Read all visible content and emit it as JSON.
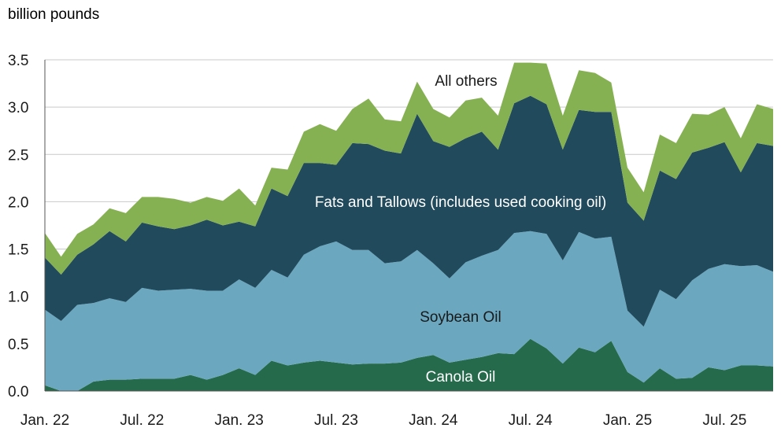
{
  "chart_data": {
    "type": "area",
    "stacked": true,
    "ylabel": "billion pounds",
    "ylim": [
      0,
      3.5
    ],
    "yticks": [
      "0.0",
      "0.5",
      "1.0",
      "1.5",
      "2.0",
      "2.5",
      "3.0",
      "3.5"
    ],
    "grid": true,
    "x": [
      "2022-01",
      "2022-02",
      "2022-03",
      "2022-04",
      "2022-05",
      "2022-06",
      "2022-07",
      "2022-08",
      "2022-09",
      "2022-10",
      "2022-11",
      "2022-12",
      "2023-01",
      "2023-02",
      "2023-03",
      "2023-04",
      "2023-05",
      "2023-06",
      "2023-07",
      "2023-08",
      "2023-09",
      "2023-10",
      "2023-11",
      "2023-12",
      "2024-01",
      "2024-02",
      "2024-03",
      "2024-04",
      "2024-05",
      "2024-06",
      "2024-07",
      "2024-08",
      "2024-09",
      "2024-10",
      "2024-11",
      "2024-12",
      "2025-01",
      "2025-02",
      "2025-03",
      "2025-04",
      "2025-05",
      "2025-06",
      "2025-07",
      "2025-08",
      "2025-09",
      "2025-10"
    ],
    "xtick_labels": [
      {
        "x": "2022-01",
        "label": "Jan. 22"
      },
      {
        "x": "2022-07",
        "label": "Jul. 22"
      },
      {
        "x": "2023-01",
        "label": "Jan. 23"
      },
      {
        "x": "2023-07",
        "label": "Jul. 23"
      },
      {
        "x": "2024-01",
        "label": "Jan. 24"
      },
      {
        "x": "2024-07",
        "label": "Jul. 24"
      },
      {
        "x": "2025-01",
        "label": "Jan. 25"
      },
      {
        "x": "2025-07",
        "label": "Jul. 25"
      }
    ],
    "series": [
      {
        "name": "Canola Oil",
        "color": "#256b4b",
        "values": [
          0.06,
          0.0,
          0.0,
          0.1,
          0.12,
          0.12,
          0.13,
          0.13,
          0.13,
          0.17,
          0.12,
          0.17,
          0.24,
          0.17,
          0.32,
          0.27,
          0.3,
          0.32,
          0.3,
          0.28,
          0.29,
          0.29,
          0.3,
          0.35,
          0.38,
          0.3,
          0.33,
          0.36,
          0.4,
          0.39,
          0.55,
          0.45,
          0.29,
          0.46,
          0.41,
          0.53,
          0.2,
          0.09,
          0.24,
          0.13,
          0.14,
          0.25,
          0.22,
          0.27,
          0.27,
          0.26
        ]
      },
      {
        "name": "Soybean Oil",
        "color": "#6ba8c0",
        "values": [
          0.8,
          0.74,
          0.91,
          0.83,
          0.86,
          0.82,
          0.96,
          0.93,
          0.94,
          0.91,
          0.94,
          0.89,
          0.94,
          0.92,
          0.96,
          0.93,
          1.14,
          1.21,
          1.28,
          1.21,
          1.2,
          1.06,
          1.07,
          1.14,
          0.97,
          0.89,
          1.03,
          1.07,
          1.09,
          1.28,
          1.14,
          1.21,
          1.09,
          1.22,
          1.2,
          1.1,
          0.65,
          0.59,
          0.83,
          0.84,
          1.03,
          1.04,
          1.12,
          1.05,
          1.06,
          1.0
        ]
      },
      {
        "name": "Fats and Tallows (includes used cooking oil)",
        "color": "#214a5d",
        "values": [
          0.55,
          0.49,
          0.53,
          0.62,
          0.71,
          0.64,
          0.69,
          0.68,
          0.64,
          0.67,
          0.75,
          0.69,
          0.61,
          0.65,
          0.86,
          0.86,
          0.97,
          0.88,
          0.81,
          1.13,
          1.12,
          1.19,
          1.14,
          1.44,
          1.29,
          1.39,
          1.31,
          1.31,
          1.06,
          1.37,
          1.43,
          1.37,
          1.17,
          1.29,
          1.34,
          1.32,
          1.14,
          1.12,
          1.26,
          1.27,
          1.35,
          1.28,
          1.29,
          0.99,
          1.29,
          1.33
        ]
      },
      {
        "name": "All others",
        "color": "#86b152",
        "values": [
          0.26,
          0.19,
          0.22,
          0.21,
          0.24,
          0.3,
          0.27,
          0.31,
          0.32,
          0.24,
          0.24,
          0.26,
          0.35,
          0.22,
          0.22,
          0.28,
          0.33,
          0.41,
          0.36,
          0.36,
          0.48,
          0.33,
          0.34,
          0.34,
          0.34,
          0.31,
          0.4,
          0.36,
          0.36,
          0.43,
          0.35,
          0.43,
          0.36,
          0.42,
          0.41,
          0.31,
          0.37,
          0.3,
          0.38,
          0.38,
          0.41,
          0.35,
          0.37,
          0.36,
          0.41,
          0.39
        ]
      }
    ],
    "annotations": [
      {
        "text": "All others",
        "series": "All others"
      },
      {
        "text": "Fats and Tallows (includes used cooking oil)",
        "series": "Fats and Tallows (includes used cooking oil)"
      },
      {
        "text": "Soybean Oil",
        "series": "Soybean Oil"
      },
      {
        "text": "Canola Oil",
        "series": "Canola Oil"
      }
    ]
  }
}
